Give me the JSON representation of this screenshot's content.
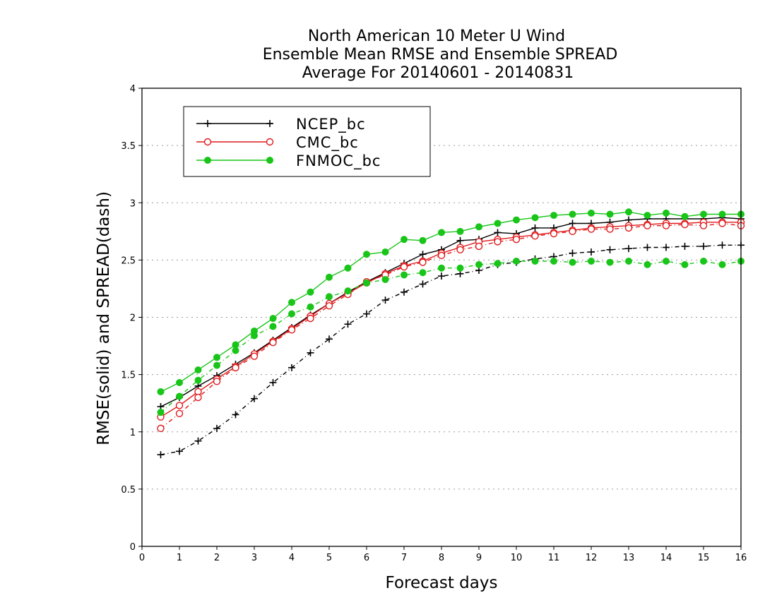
{
  "chart_data": {
    "type": "line",
    "title": [
      "North American 10 Meter U Wind",
      "Ensemble Mean RMSE and Ensemble SPREAD",
      "Average For 20140601 - 20140831"
    ],
    "xlabel": "Forecast days",
    "ylabel": "RMSE(solid) and SPREAD(dash)",
    "xlim": [
      0,
      16
    ],
    "ylim": [
      0,
      4
    ],
    "xticks": [
      "0",
      "1",
      "2",
      "3",
      "4",
      "5",
      "6",
      "7",
      "8",
      "9",
      "10",
      "11",
      "12",
      "13",
      "14",
      "15",
      "16"
    ],
    "yticks": [
      "0",
      "0.5",
      "1",
      "1.5",
      "2",
      "2.5",
      "3",
      "3.5",
      "4"
    ],
    "grid": "horizontal dotted",
    "legend_position": "top-left",
    "x": [
      0.5,
      1,
      1.5,
      2,
      2.5,
      3,
      3.5,
      4,
      4.5,
      5,
      5.5,
      6,
      6.5,
      7,
      7.5,
      8,
      8.5,
      9,
      9.5,
      10,
      10.5,
      11,
      11.5,
      12,
      12.5,
      13,
      13.5,
      14,
      14.5,
      15,
      15.5,
      16
    ],
    "series": [
      {
        "name": "NCEP_bc",
        "color": "#000000",
        "marker": "plus",
        "rmse": [
          1.22,
          1.3,
          1.4,
          1.49,
          1.59,
          1.69,
          1.8,
          1.91,
          2.02,
          2.12,
          2.22,
          2.31,
          2.39,
          2.47,
          2.55,
          2.59,
          2.67,
          2.68,
          2.74,
          2.73,
          2.78,
          2.78,
          2.82,
          2.82,
          2.83,
          2.85,
          2.86,
          2.86,
          2.86,
          2.86,
          2.87,
          2.86
        ],
        "spread": [
          0.8,
          0.83,
          0.92,
          1.03,
          1.15,
          1.29,
          1.43,
          1.56,
          1.69,
          1.81,
          1.94,
          2.03,
          2.15,
          2.22,
          2.29,
          2.36,
          2.38,
          2.41,
          2.46,
          2.48,
          2.51,
          2.53,
          2.56,
          2.57,
          2.59,
          2.6,
          2.61,
          2.61,
          2.62,
          2.62,
          2.63,
          2.63
        ]
      },
      {
        "name": "CMC_bc",
        "color": "#e0191b",
        "marker": "open-circle",
        "rmse": [
          1.13,
          1.23,
          1.35,
          1.46,
          1.57,
          1.68,
          1.79,
          1.9,
          2.01,
          2.12,
          2.21,
          2.3,
          2.38,
          2.45,
          2.49,
          2.56,
          2.61,
          2.66,
          2.68,
          2.7,
          2.72,
          2.74,
          2.76,
          2.78,
          2.79,
          2.8,
          2.81,
          2.82,
          2.82,
          2.83,
          2.83,
          2.83
        ],
        "spread": [
          1.03,
          1.16,
          1.3,
          1.44,
          1.56,
          1.66,
          1.78,
          1.89,
          1.99,
          2.1,
          2.2,
          2.31,
          2.37,
          2.44,
          2.48,
          2.54,
          2.59,
          2.62,
          2.66,
          2.68,
          2.71,
          2.73,
          2.75,
          2.77,
          2.77,
          2.78,
          2.8,
          2.8,
          2.81,
          2.8,
          2.82,
          2.8
        ]
      },
      {
        "name": "FNMOC_bc",
        "color": "#19c519",
        "marker": "filled-circle",
        "rmse": [
          1.35,
          1.43,
          1.54,
          1.65,
          1.76,
          1.88,
          1.99,
          2.13,
          2.22,
          2.35,
          2.43,
          2.55,
          2.57,
          2.68,
          2.67,
          2.74,
          2.75,
          2.79,
          2.82,
          2.85,
          2.87,
          2.89,
          2.9,
          2.91,
          2.9,
          2.92,
          2.89,
          2.91,
          2.88,
          2.9,
          2.9,
          2.9
        ],
        "spread": [
          1.17,
          1.31,
          1.45,
          1.58,
          1.71,
          1.84,
          1.92,
          2.03,
          2.09,
          2.18,
          2.23,
          2.3,
          2.33,
          2.37,
          2.39,
          2.43,
          2.43,
          2.46,
          2.47,
          2.49,
          2.49,
          2.49,
          2.48,
          2.49,
          2.48,
          2.49,
          2.46,
          2.49,
          2.46,
          2.49,
          2.46,
          2.49
        ]
      }
    ]
  }
}
